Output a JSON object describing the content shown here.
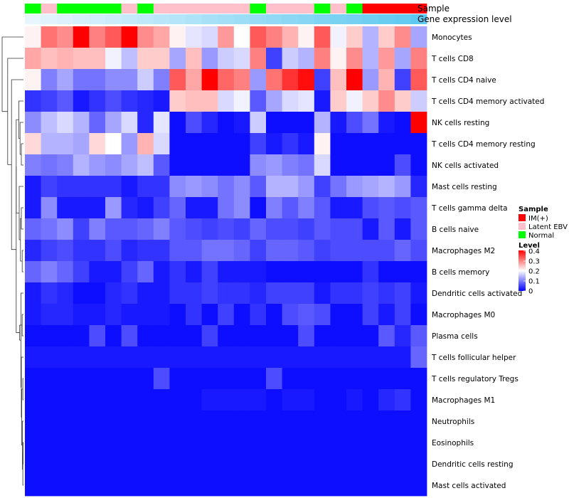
{
  "chart_data": {
    "type": "heatmap",
    "title": "",
    "annotation_labels": {
      "sample": "Sample",
      "gene_expression": "Gene expression level"
    },
    "legend_sample": {
      "title": "Sample",
      "entries": [
        {
          "label": "IM(+)",
          "color": "#ff0000"
        },
        {
          "label": "Latent EBV",
          "color": "#ffc0cb"
        },
        {
          "label": "Normal",
          "color": "#00ff00"
        }
      ]
    },
    "legend_level": {
      "title": "Level",
      "ticks": [
        "0.4",
        "0.3",
        "0.2",
        "0.1",
        "0"
      ],
      "range": [
        0,
        0.4
      ],
      "colors": {
        "low": "#0000ff",
        "mid": "#ffffff",
        "high": "#ff0000"
      }
    },
    "samples": [
      "Normal",
      "Latent EBV",
      "Normal",
      "Normal",
      "Normal",
      "Normal",
      "Latent EBV",
      "Normal",
      "Latent EBV",
      "Latent EBV",
      "Latent EBV",
      "Latent EBV",
      "Latent EBV",
      "Latent EBV",
      "Normal",
      "Latent EBV",
      "Latent EBV",
      "Latent EBV",
      "Normal",
      "Latent EBV",
      "Normal",
      "IM(+)",
      "IM(+)",
      "IM(+)",
      "IM(+)"
    ],
    "gene_expression_level": [
      0.02,
      0.06,
      0.1,
      0.14,
      0.18,
      0.22,
      0.26,
      0.3,
      0.34,
      0.38,
      0.42,
      0.46,
      0.5,
      0.54,
      0.58,
      0.62,
      0.66,
      0.7,
      0.74,
      0.78,
      0.82,
      0.86,
      0.9,
      0.94,
      0.98
    ],
    "rows": [
      "Monocytes",
      "T cells CD8",
      "T cells CD4 naive",
      "T cells CD4 memory activated",
      "NK cells resting",
      "T cells CD4 memory resting",
      "NK cells activated",
      "Mast cells resting",
      "T cells gamma delta",
      "B cells naive",
      "Macrophages M2",
      "B cells memory",
      "Dendritic cells activated",
      "Macrophages M0",
      "Plasma cells",
      "T cells follicular helper",
      "T cells regulatory  Tregs",
      "Macrophages M1",
      "Neutrophils",
      "Eosinophils",
      "Dendritic cells resting",
      "Mast cells activated"
    ],
    "values": [
      [
        0.21,
        0.31,
        0.29,
        0.4,
        0.3,
        0.33,
        0.4,
        0.29,
        0.27,
        0.21,
        0.18,
        0.17,
        0.28,
        0.2,
        0.33,
        0.3,
        0.26,
        0.21,
        0.33,
        0.19,
        0.24,
        0.14,
        0.24,
        0.29,
        0.13
      ],
      [
        0.27,
        0.25,
        0.26,
        0.25,
        0.25,
        0.19,
        0.15,
        0.24,
        0.24,
        0.13,
        0.25,
        0.12,
        0.16,
        0.17,
        0.3,
        0.05,
        0.16,
        0.14,
        0.3,
        0.21,
        0.29,
        0.14,
        0.28,
        0.13,
        0.3
      ],
      [
        0.21,
        0.1,
        0.13,
        0.09,
        0.09,
        0.11,
        0.11,
        0.16,
        0.1,
        0.33,
        0.27,
        0.4,
        0.32,
        0.3,
        0.12,
        0.31,
        0.36,
        0.39,
        0.05,
        0.25,
        0.4,
        0.12,
        0.26,
        0.05,
        0.33
      ],
      [
        0.04,
        0.05,
        0.07,
        0.02,
        0.04,
        0.06,
        0.04,
        0.03,
        0.02,
        0.24,
        0.25,
        0.25,
        0.17,
        0.19,
        0.07,
        0.13,
        0.17,
        0.18,
        0.02,
        0.24,
        0.19,
        0.24,
        0.29,
        0.24,
        0.16
      ],
      [
        0.11,
        0.15,
        0.17,
        0.14,
        0.08,
        0.13,
        0.17,
        0.03,
        0.18,
        0.01,
        0.06,
        0.03,
        0.01,
        0.02,
        0.16,
        0.01,
        0.01,
        0.01,
        0.14,
        0.02,
        0.06,
        0.09,
        0.02,
        0.01,
        0.4
      ],
      [
        0.23,
        0.14,
        0.14,
        0.13,
        0.23,
        0.2,
        0.12,
        0.26,
        0.17,
        0.01,
        0.01,
        0.01,
        0.01,
        0.01,
        0.05,
        0.02,
        0.04,
        0.02,
        0.21,
        0.01,
        0.01,
        0.01,
        0.01,
        0.01,
        0.01
      ],
      [
        0.1,
        0.09,
        0.1,
        0.14,
        0.12,
        0.11,
        0.13,
        0.15,
        0.07,
        0.01,
        0.01,
        0.01,
        0.01,
        0.01,
        0.11,
        0.12,
        0.1,
        0.09,
        0.17,
        0.01,
        0.01,
        0.01,
        0.01,
        0.06,
        0.01
      ],
      [
        0.02,
        0.05,
        0.04,
        0.04,
        0.04,
        0.04,
        0.02,
        0.04,
        0.04,
        0.11,
        0.12,
        0.11,
        0.09,
        0.11,
        0.07,
        0.14,
        0.14,
        0.12,
        0.05,
        0.09,
        0.12,
        0.13,
        0.14,
        0.12,
        0.03
      ],
      [
        0.02,
        0.11,
        0.02,
        0.02,
        0.02,
        0.12,
        0.03,
        0.02,
        0.05,
        0.08,
        0.02,
        0.02,
        0.09,
        0.11,
        0.01,
        0.1,
        0.07,
        0.1,
        0.07,
        0.02,
        0.02,
        0.06,
        0.07,
        0.06,
        0.07
      ],
      [
        0.08,
        0.09,
        0.11,
        0.05,
        0.1,
        0.07,
        0.07,
        0.08,
        0.1,
        0.07,
        0.06,
        0.05,
        0.06,
        0.05,
        0.08,
        0.06,
        0.06,
        0.05,
        0.07,
        0.06,
        0.06,
        0.02,
        0.07,
        0.02,
        0.07
      ],
      [
        0.03,
        0.05,
        0.06,
        0.04,
        0.04,
        0.06,
        0.03,
        0.04,
        0.04,
        0.07,
        0.07,
        0.09,
        0.09,
        0.08,
        0.05,
        0.08,
        0.08,
        0.07,
        0.05,
        0.06,
        0.06,
        0.06,
        0.06,
        0.08,
        0.06
      ],
      [
        0.08,
        0.1,
        0.08,
        0.05,
        0.02,
        0.02,
        0.05,
        0.08,
        0.02,
        0.04,
        0.02,
        0.05,
        0.02,
        0.02,
        0.02,
        0.01,
        0.01,
        0.01,
        0.01,
        0.01,
        0.01,
        0.04,
        0.01,
        0.01,
        0.01
      ],
      [
        0.02,
        0.04,
        0.03,
        0.01,
        0.01,
        0.03,
        0.04,
        0.02,
        0.02,
        0.04,
        0.04,
        0.05,
        0.04,
        0.04,
        0.03,
        0.05,
        0.05,
        0.05,
        0.02,
        0.04,
        0.04,
        0.05,
        0.04,
        0.05,
        0.02
      ],
      [
        0.02,
        0.03,
        0.03,
        0.02,
        0.02,
        0.03,
        0.02,
        0.02,
        0.02,
        0.01,
        0.04,
        0.01,
        0.05,
        0.01,
        0.04,
        0.01,
        0.06,
        0.07,
        0.06,
        0.01,
        0.01,
        0.05,
        0.02,
        0.05,
        0.01
      ],
      [
        0.01,
        0.01,
        0.01,
        0.01,
        0.06,
        0.01,
        0.06,
        0.01,
        0.01,
        0.01,
        0.01,
        0.05,
        0.01,
        0.01,
        0.01,
        0.01,
        0.01,
        0.06,
        0.01,
        0.01,
        0.01,
        0.01,
        0.07,
        0.03,
        0.07
      ],
      [
        0.02,
        0.02,
        0.02,
        0.02,
        0.02,
        0.02,
        0.02,
        0.02,
        0.02,
        0.02,
        0.02,
        0.02,
        0.02,
        0.02,
        0.02,
        0.02,
        0.02,
        0.02,
        0.02,
        0.02,
        0.02,
        0.02,
        0.02,
        0.02,
        0.08
      ],
      [
        0.01,
        0.01,
        0.01,
        0.01,
        0.01,
        0.01,
        0.01,
        0.01,
        0.06,
        0.01,
        0.01,
        0.01,
        0.01,
        0.01,
        0.01,
        0.06,
        0.01,
        0.01,
        0.01,
        0.01,
        0.01,
        0.01,
        0.01,
        0.01,
        0.01
      ],
      [
        0.01,
        0.01,
        0.01,
        0.01,
        0.01,
        0.01,
        0.01,
        0.01,
        0.01,
        0.01,
        0.01,
        0.02,
        0.02,
        0.02,
        0.02,
        0.01,
        0.02,
        0.02,
        0.01,
        0.01,
        0.02,
        0.01,
        0.03,
        0.04,
        0.01
      ],
      [
        0.01,
        0.01,
        0.01,
        0.01,
        0.01,
        0.01,
        0.01,
        0.01,
        0.01,
        0.01,
        0.01,
        0.01,
        0.01,
        0.01,
        0.01,
        0.01,
        0.01,
        0.01,
        0.01,
        0.01,
        0.01,
        0.01,
        0.01,
        0.01,
        0.01
      ],
      [
        0.01,
        0.01,
        0.01,
        0.01,
        0.01,
        0.01,
        0.01,
        0.01,
        0.01,
        0.01,
        0.01,
        0.01,
        0.01,
        0.01,
        0.01,
        0.01,
        0.01,
        0.01,
        0.01,
        0.01,
        0.01,
        0.01,
        0.01,
        0.01,
        0.01
      ],
      [
        0.01,
        0.01,
        0.01,
        0.01,
        0.01,
        0.01,
        0.01,
        0.01,
        0.01,
        0.01,
        0.01,
        0.01,
        0.01,
        0.01,
        0.01,
        0.01,
        0.01,
        0.01,
        0.01,
        0.01,
        0.01,
        0.01,
        0.01,
        0.01,
        0.01
      ],
      [
        0.01,
        0.01,
        0.01,
        0.01,
        0.01,
        0.01,
        0.01,
        0.01,
        0.01,
        0.01,
        0.01,
        0.01,
        0.01,
        0.01,
        0.01,
        0.01,
        0.01,
        0.01,
        0.01,
        0.01,
        0.01,
        0.01,
        0.01,
        0.01,
        0.01
      ]
    ],
    "row_dendrogram": [
      [
        5,
        6,
        0.1
      ],
      [
        4,
        22,
        0.16
      ],
      [
        3,
        23,
        0.22
      ],
      [
        10,
        11,
        0.06
      ],
      [
        8,
        9,
        0.1
      ],
      [
        25,
        26,
        0.14
      ],
      [
        7,
        27,
        0.2
      ],
      [
        24,
        28,
        0.34
      ],
      [
        13,
        14,
        0.06
      ],
      [
        16,
        17,
        0.03
      ],
      [
        19,
        20,
        0.02
      ],
      [
        21,
        32,
        0.03
      ],
      [
        18,
        33,
        0.05
      ],
      [
        31,
        34,
        0.08
      ],
      [
        15,
        35,
        0.1
      ],
      [
        12,
        36,
        0.12
      ],
      [
        30,
        37,
        0.18
      ],
      [
        29,
        38,
        0.34
      ],
      [
        2,
        39,
        0.56
      ],
      [
        1,
        40,
        0.74
      ],
      [
        0,
        41,
        1.0
      ]
    ]
  }
}
